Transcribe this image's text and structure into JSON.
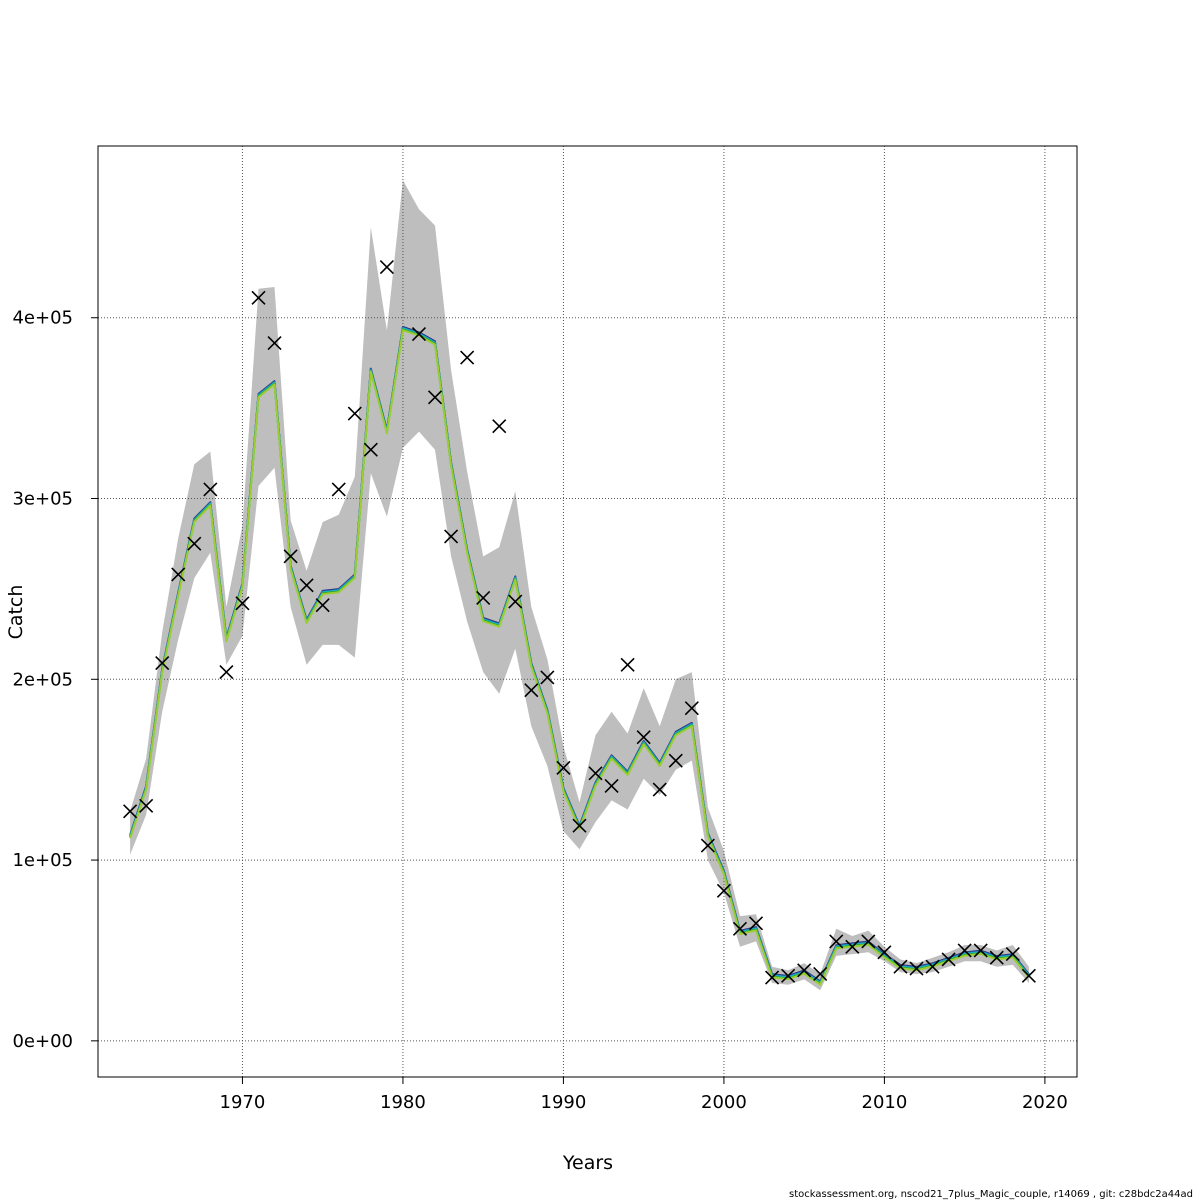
{
  "chart_data": {
    "type": "line",
    "title": "",
    "xlabel": "Years",
    "ylabel": "Catch",
    "xlim": [
      1961,
      2022
    ],
    "ylim": [
      -20000,
      495000
    ],
    "x_ticks": [
      1970,
      1980,
      1990,
      2000,
      2010,
      2020
    ],
    "x_tick_labels": [
      "1970",
      "1980",
      "1990",
      "2000",
      "2010",
      "2020"
    ],
    "y_ticks": [
      0,
      100000,
      200000,
      300000,
      400000
    ],
    "y_tick_labels": [
      "0e+00",
      "1e+05",
      "2e+05",
      "3e+05",
      "4e+05"
    ],
    "grid": true,
    "legend": "none",
    "colors": {
      "band": "#bebebe",
      "observed_marker": "#000000",
      "series": [
        "#2a2a7a",
        "#1f78b4",
        "#17becf",
        "#2ca02c",
        "#9acd32"
      ],
      "grid": "#555555"
    },
    "years": [
      1963,
      1964,
      1965,
      1966,
      1967,
      1968,
      1969,
      1970,
      1971,
      1972,
      1973,
      1974,
      1975,
      1976,
      1977,
      1978,
      1979,
      1980,
      1981,
      1982,
      1983,
      1984,
      1985,
      1986,
      1987,
      1988,
      1989,
      1990,
      1991,
      1992,
      1993,
      1994,
      1995,
      1996,
      1997,
      1998,
      1999,
      2000,
      2001,
      2002,
      2003,
      2004,
      2005,
      2006,
      2007,
      2008,
      2009,
      2010,
      2011,
      2012,
      2013,
      2014,
      2015,
      2016,
      2017,
      2018,
      2019
    ],
    "observed": [
      127000,
      130000,
      209000,
      258000,
      275000,
      305000,
      204000,
      242000,
      411000,
      386000,
      268000,
      252000,
      241000,
      305000,
      347000,
      327000,
      428000,
      null,
      391000,
      356000,
      279000,
      378000,
      245000,
      340000,
      243000,
      194000,
      201000,
      151000,
      119000,
      148000,
      141000,
      208000,
      168000,
      139000,
      155000,
      184000,
      108000,
      83000,
      62000,
      65000,
      35000,
      36000,
      39000,
      37000,
      55000,
      52000,
      55000,
      49000,
      41000,
      40000,
      41000,
      45000,
      50000,
      50000,
      46000,
      48000,
      36000
    ],
    "estimate": [
      113000,
      140000,
      205000,
      247000,
      288000,
      297000,
      222000,
      252000,
      357000,
      364000,
      262000,
      232000,
      248000,
      249000,
      257000,
      371000,
      337000,
      394000,
      391000,
      386000,
      319000,
      271000,
      233000,
      230000,
      256000,
      208000,
      182000,
      139000,
      118000,
      142000,
      157000,
      148000,
      165000,
      153000,
      170000,
      175000,
      114000,
      93000,
      60000,
      62000,
      36000,
      35000,
      38000,
      32000,
      52000,
      53000,
      54000,
      47000,
      41000,
      40000,
      42000,
      45000,
      48000,
      49000,
      46000,
      47000,
      36000
    ],
    "band_lower": [
      103000,
      125000,
      182000,
      222000,
      256000,
      270000,
      208000,
      224000,
      307000,
      317000,
      240000,
      208000,
      219000,
      219000,
      212000,
      314000,
      290000,
      328000,
      337000,
      327000,
      268000,
      232000,
      204000,
      192000,
      217000,
      174000,
      152000,
      116000,
      106000,
      121000,
      133000,
      128000,
      145000,
      136000,
      150000,
      155000,
      100000,
      82000,
      52000,
      55000,
      32000,
      31000,
      34000,
      28000,
      47000,
      48000,
      49000,
      44000,
      38000,
      37000,
      38000,
      41000,
      44000,
      44000,
      41000,
      42000,
      32000
    ],
    "band_upper": [
      127000,
      156000,
      226000,
      278000,
      319000,
      326000,
      240000,
      285000,
      416000,
      417000,
      288000,
      260000,
      287000,
      291000,
      312000,
      450000,
      393000,
      476000,
      460000,
      451000,
      371000,
      315000,
      268000,
      273000,
      304000,
      240000,
      211000,
      163000,
      132000,
      169000,
      182000,
      170000,
      195000,
      174000,
      200000,
      204000,
      129000,
      105000,
      69000,
      70000,
      41000,
      39000,
      43000,
      37000,
      62000,
      58000,
      61000,
      52000,
      45000,
      43000,
      46000,
      49000,
      53000,
      53000,
      50000,
      53000,
      41000
    ],
    "footnote": "stockassessment.org, nscod21_7plus_Magic_couple, r14069 , git: c28bdc2a44ad"
  }
}
